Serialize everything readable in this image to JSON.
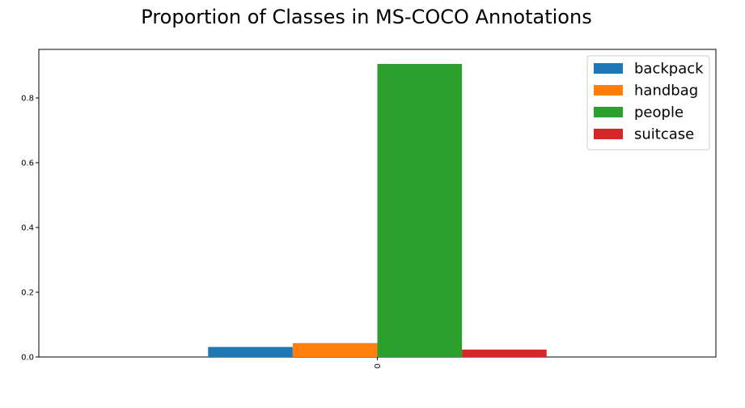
{
  "chart_data": {
    "type": "bar",
    "title": "Proportion of Classes in MS-COCO Annotations",
    "xlabel": "",
    "ylabel": "",
    "categories": [
      "0"
    ],
    "series": [
      {
        "name": "backpack",
        "values": [
          0.031
        ],
        "color": "#1f77b4"
      },
      {
        "name": "handbag",
        "values": [
          0.043
        ],
        "color": "#ff7f0e"
      },
      {
        "name": "people",
        "values": [
          0.905
        ],
        "color": "#2ca02c"
      },
      {
        "name": "suitcase",
        "values": [
          0.023
        ],
        "color": "#d62728"
      }
    ],
    "ylim": [
      0,
      0.95
    ],
    "yticks": [
      "0.0",
      "0.2",
      "0.4",
      "0.6",
      "0.8"
    ],
    "ytick_values": [
      0.0,
      0.2,
      0.4,
      0.6,
      0.8
    ],
    "grid": false,
    "legend_position": "top-right"
  }
}
